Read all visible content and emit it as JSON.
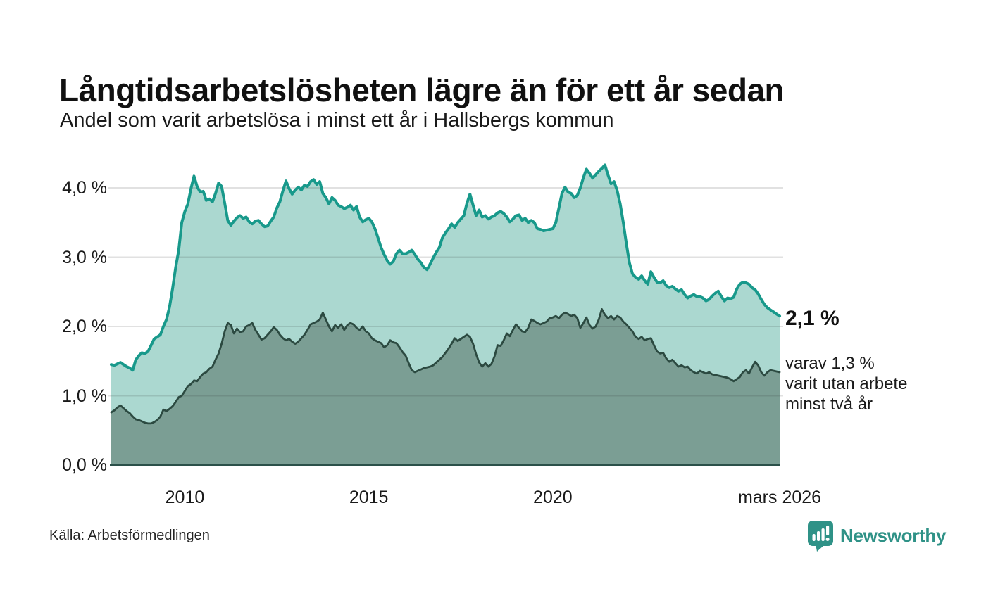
{
  "header": {
    "title": "Långtidsarbetslösheten lägre än för ett år sedan",
    "subtitle": "Andel som varit arbetslösa i minst ett år i Hallsbergs kommun"
  },
  "annotations": {
    "latest": {
      "value": "2,1 %"
    },
    "secondary": [
      "varav 1,3 %",
      "varit utan arbete",
      "minst två år"
    ]
  },
  "footer": {
    "source": "Källa: Arbetsförmedlingen",
    "brand": "Newsworthy"
  },
  "colors": {
    "background": "#ffffff",
    "accent_teal": "#18998b",
    "light_fill": "#abd8d0",
    "dark_line": "#2c4a41",
    "dark_fill": "#7b9e94",
    "axis": "#2b5049",
    "brand_teal": "#2f9287",
    "text": "#1a1a1a"
  },
  "chart_data": {
    "type": "area",
    "title": "Långtidsarbetslösheten lägre än för ett år sedan",
    "subtitle": "Andel som varit arbetslösa i minst ett år i Hallsbergs kommun",
    "unit": "%",
    "frequency": "monthly",
    "x_range": {
      "start": "2008-01",
      "end": "2026-03"
    },
    "ylim": [
      0,
      4.4
    ],
    "grid": true,
    "legend": "none",
    "y_ticks": [
      {
        "value": 0,
        "label": "0,0 %"
      },
      {
        "value": 1,
        "label": "1,0 %"
      },
      {
        "value": 2,
        "label": "2,0 %"
      },
      {
        "value": 3,
        "label": "3,0 %"
      },
      {
        "value": 4,
        "label": "4,0 %"
      }
    ],
    "x_ticks": [
      {
        "index": 24,
        "label": "2010"
      },
      {
        "index": 84,
        "label": "2015"
      },
      {
        "index": 144,
        "label": "2020"
      },
      {
        "index": 218,
        "label": "mars 2026"
      }
    ],
    "axis_color": "#2b5049",
    "series": [
      {
        "name": "Arbetslösa minst ett år",
        "end_label": "2,1 %",
        "color": "#18998b",
        "fill": "#abd8d0",
        "values": [
          1.45,
          1.44,
          1.46,
          1.48,
          1.45,
          1.42,
          1.4,
          1.37,
          1.52,
          1.58,
          1.62,
          1.61,
          1.64,
          1.73,
          1.82,
          1.85,
          1.88,
          2.0,
          2.1,
          2.28,
          2.55,
          2.85,
          3.1,
          3.5,
          3.66,
          3.77,
          3.99,
          4.17,
          4.02,
          3.94,
          3.95,
          3.82,
          3.84,
          3.8,
          3.92,
          4.07,
          4.02,
          3.78,
          3.53,
          3.46,
          3.52,
          3.57,
          3.6,
          3.56,
          3.58,
          3.51,
          3.48,
          3.52,
          3.53,
          3.48,
          3.44,
          3.45,
          3.52,
          3.58,
          3.71,
          3.8,
          3.96,
          4.1,
          3.99,
          3.91,
          3.97,
          4.01,
          3.97,
          4.04,
          4.02,
          4.09,
          4.12,
          4.05,
          4.09,
          3.92,
          3.86,
          3.77,
          3.86,
          3.82,
          3.75,
          3.73,
          3.7,
          3.72,
          3.75,
          3.68,
          3.73,
          3.58,
          3.51,
          3.54,
          3.56,
          3.51,
          3.41,
          3.28,
          3.14,
          3.04,
          2.95,
          2.9,
          2.94,
          3.05,
          3.1,
          3.05,
          3.05,
          3.07,
          3.1,
          3.04,
          2.97,
          2.92,
          2.85,
          2.82,
          2.9,
          2.99,
          3.07,
          3.14,
          3.28,
          3.35,
          3.41,
          3.48,
          3.43,
          3.5,
          3.55,
          3.6,
          3.78,
          3.91,
          3.75,
          3.6,
          3.68,
          3.58,
          3.6,
          3.55,
          3.58,
          3.6,
          3.64,
          3.66,
          3.63,
          3.58,
          3.51,
          3.55,
          3.6,
          3.61,
          3.53,
          3.56,
          3.5,
          3.53,
          3.5,
          3.41,
          3.4,
          3.38,
          3.39,
          3.4,
          3.41,
          3.5,
          3.71,
          3.92,
          4.01,
          3.94,
          3.92,
          3.86,
          3.89,
          4.0,
          4.15,
          4.27,
          4.21,
          4.14,
          4.19,
          4.24,
          4.28,
          4.33,
          4.19,
          4.06,
          4.09,
          3.96,
          3.77,
          3.5,
          3.2,
          2.92,
          2.76,
          2.71,
          2.68,
          2.73,
          2.66,
          2.61,
          2.79,
          2.71,
          2.64,
          2.63,
          2.66,
          2.59,
          2.56,
          2.58,
          2.54,
          2.51,
          2.53,
          2.46,
          2.41,
          2.44,
          2.46,
          2.43,
          2.43,
          2.41,
          2.37,
          2.39,
          2.44,
          2.48,
          2.51,
          2.43,
          2.37,
          2.41,
          2.4,
          2.42,
          2.54,
          2.61,
          2.64,
          2.63,
          2.61,
          2.56,
          2.53,
          2.47,
          2.39,
          2.32,
          2.27,
          2.24,
          2.21,
          2.18,
          2.15
        ]
      },
      {
        "name": "Arbetslösa minst två år",
        "end_label": "1,3 %",
        "color": "#2c4a41",
        "fill": "#7b9e94",
        "values": [
          0.76,
          0.79,
          0.83,
          0.86,
          0.82,
          0.78,
          0.75,
          0.7,
          0.66,
          0.65,
          0.63,
          0.61,
          0.6,
          0.6,
          0.62,
          0.65,
          0.7,
          0.8,
          0.78,
          0.81,
          0.85,
          0.91,
          0.98,
          1.0,
          1.07,
          1.14,
          1.17,
          1.22,
          1.21,
          1.27,
          1.32,
          1.34,
          1.39,
          1.42,
          1.52,
          1.61,
          1.75,
          1.93,
          2.05,
          2.02,
          1.9,
          1.97,
          1.92,
          1.93,
          2.0,
          2.02,
          2.05,
          1.95,
          1.88,
          1.81,
          1.83,
          1.88,
          1.93,
          1.99,
          1.95,
          1.88,
          1.83,
          1.8,
          1.82,
          1.78,
          1.75,
          1.78,
          1.83,
          1.88,
          1.95,
          2.03,
          2.05,
          2.07,
          2.1,
          2.2,
          2.1,
          2.0,
          1.93,
          2.02,
          1.98,
          2.03,
          1.95,
          2.02,
          2.05,
          2.03,
          1.98,
          1.95,
          2.0,
          1.93,
          1.9,
          1.83,
          1.8,
          1.78,
          1.76,
          1.7,
          1.73,
          1.8,
          1.77,
          1.76,
          1.7,
          1.63,
          1.58,
          1.47,
          1.37,
          1.34,
          1.36,
          1.38,
          1.4,
          1.41,
          1.42,
          1.44,
          1.48,
          1.52,
          1.56,
          1.62,
          1.68,
          1.75,
          1.83,
          1.79,
          1.82,
          1.85,
          1.88,
          1.85,
          1.75,
          1.6,
          1.48,
          1.42,
          1.47,
          1.42,
          1.46,
          1.57,
          1.73,
          1.72,
          1.8,
          1.9,
          1.86,
          1.95,
          2.03,
          1.98,
          1.93,
          1.92,
          1.98,
          2.1,
          2.08,
          2.05,
          2.03,
          2.05,
          2.07,
          2.12,
          2.13,
          2.15,
          2.12,
          2.17,
          2.2,
          2.18,
          2.15,
          2.17,
          2.12,
          1.98,
          2.05,
          2.13,
          2.02,
          1.97,
          2.0,
          2.1,
          2.25,
          2.17,
          2.12,
          2.15,
          2.1,
          2.15,
          2.13,
          2.07,
          2.03,
          1.98,
          1.93,
          1.85,
          1.82,
          1.85,
          1.8,
          1.82,
          1.83,
          1.73,
          1.64,
          1.61,
          1.62,
          1.54,
          1.49,
          1.52,
          1.47,
          1.42,
          1.44,
          1.41,
          1.42,
          1.37,
          1.34,
          1.32,
          1.36,
          1.34,
          1.32,
          1.34,
          1.31,
          1.3,
          1.29,
          1.28,
          1.27,
          1.26,
          1.24,
          1.21,
          1.24,
          1.27,
          1.34,
          1.37,
          1.32,
          1.41,
          1.49,
          1.44,
          1.34,
          1.29,
          1.34,
          1.37,
          1.36,
          1.35,
          1.34
        ]
      }
    ]
  }
}
